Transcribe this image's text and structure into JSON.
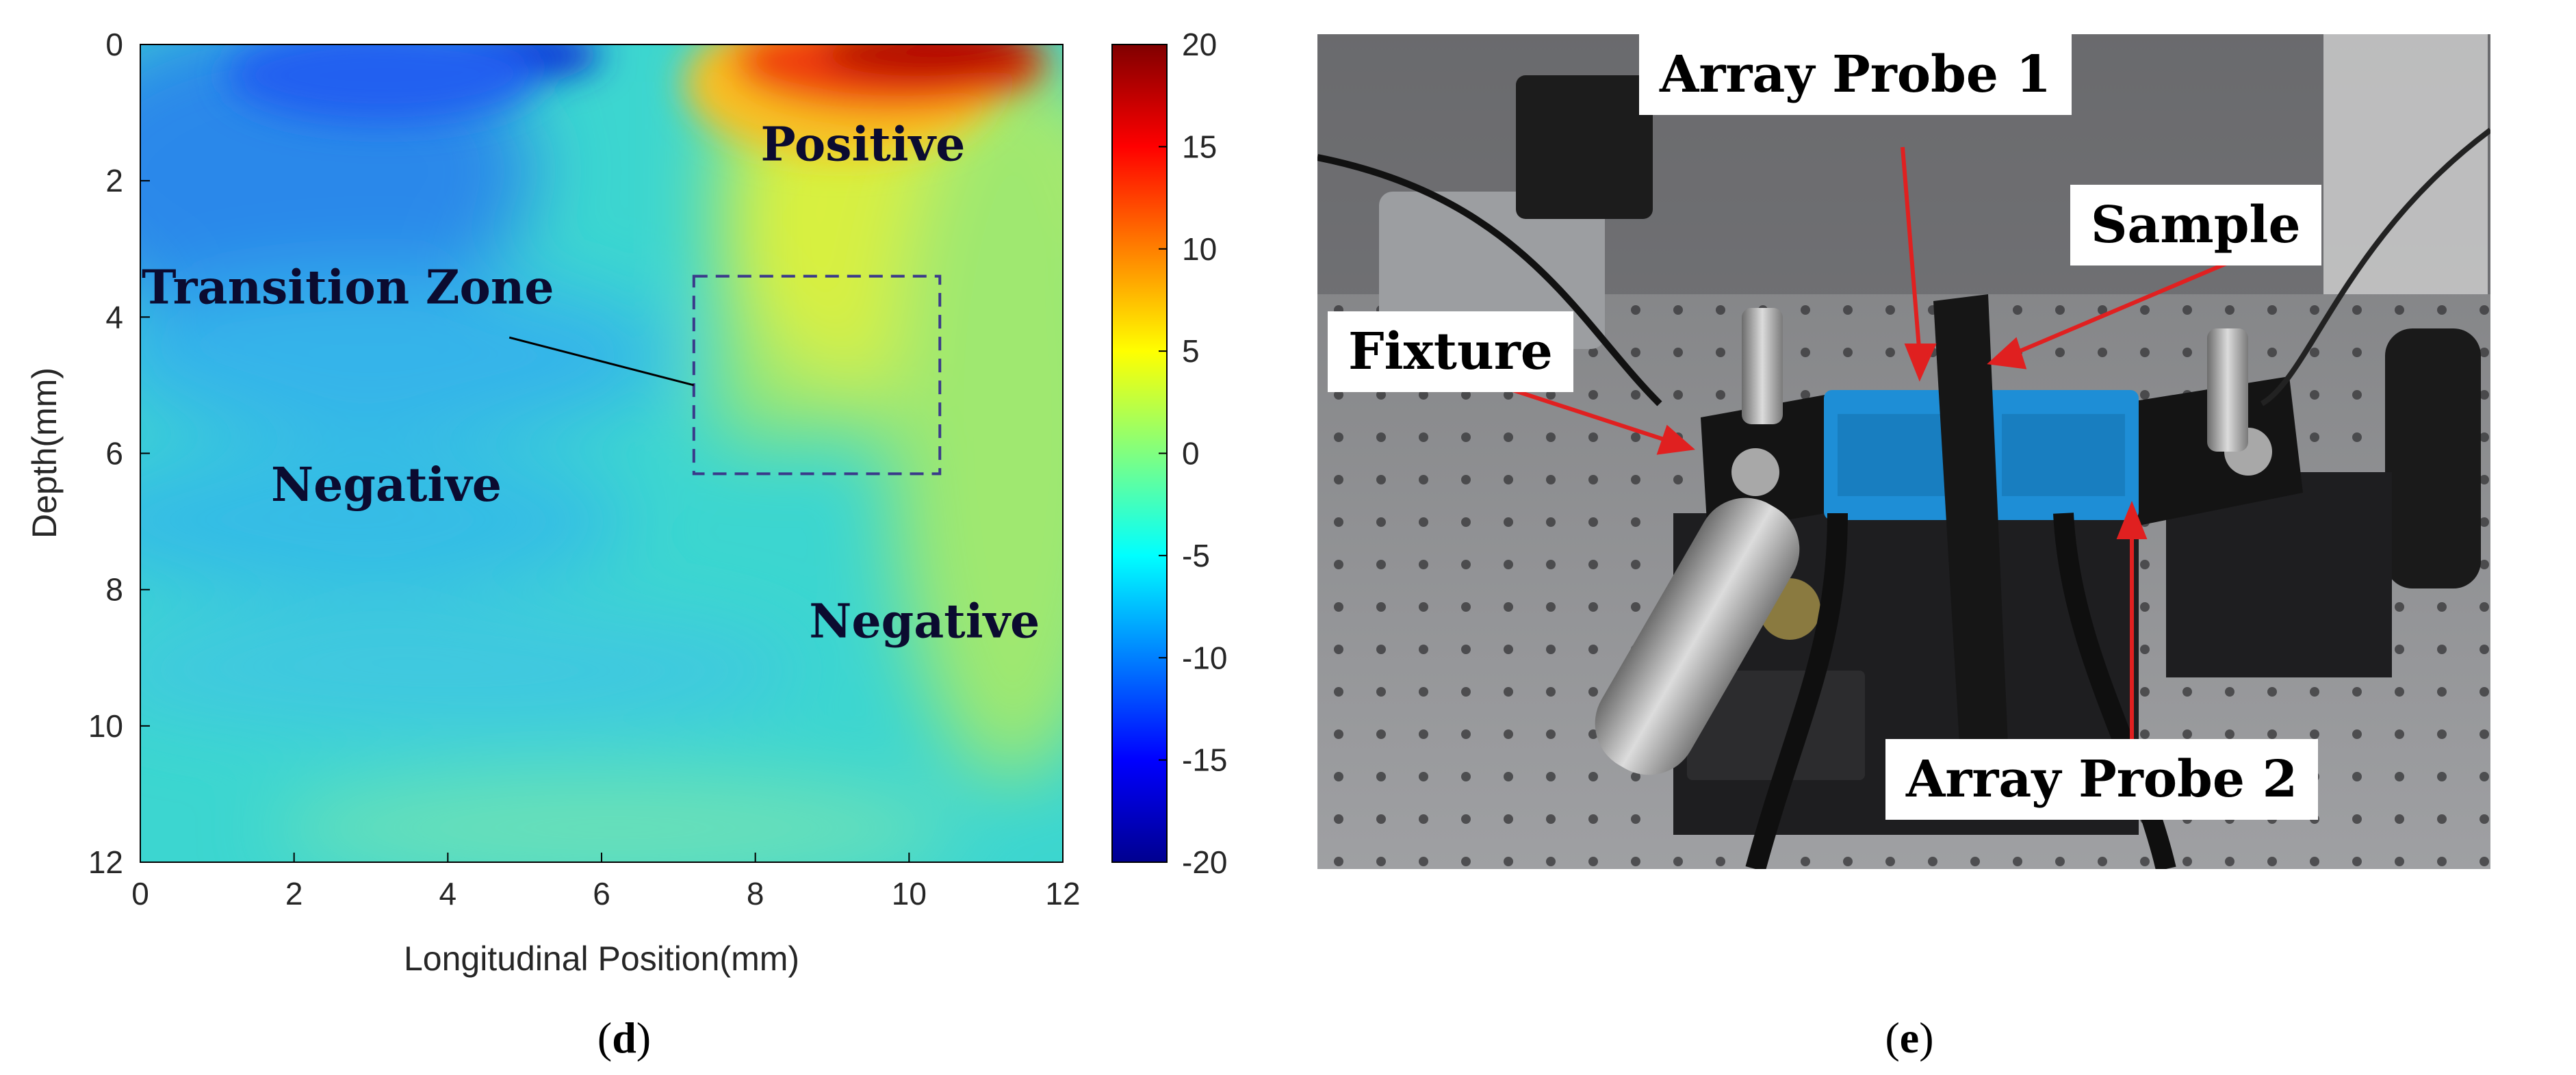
{
  "chart_data": {
    "type": "heatmap",
    "xlabel": "Longitudinal Position(mm)",
    "ylabel": "Depth(mm)",
    "xlim": [
      0,
      12
    ],
    "ylim": [
      12,
      0
    ],
    "x_ticks": [
      0,
      2,
      4,
      6,
      8,
      10,
      12
    ],
    "y_ticks": [
      0,
      2,
      4,
      6,
      8,
      10,
      12
    ],
    "colorbar": {
      "colormap": "jet",
      "range": [
        -20,
        20
      ],
      "ticks": [
        20,
        15,
        10,
        5,
        0,
        -5,
        -10,
        -15,
        -20
      ]
    },
    "region_labels": [
      {
        "text": "Positive",
        "x": 9.4,
        "y": 1.7
      },
      {
        "text": "Transition  Zone",
        "x": 2.7,
        "y": 3.8
      },
      {
        "text": "Negative",
        "x": 3.2,
        "y": 6.7
      },
      {
        "text": "Negative",
        "x": 10.2,
        "y": 8.7
      }
    ],
    "transition_box": {
      "x0": 7.2,
      "x1": 10.4,
      "y0": 3.4,
      "y1": 6.3
    },
    "leader_line": {
      "from": [
        4.8,
        4.3
      ],
      "to": [
        7.2,
        5.0
      ]
    },
    "field_samples": {
      "description": "approximate values read from color",
      "x": [
        0,
        2,
        4,
        6,
        8,
        10,
        12
      ],
      "y": [
        0,
        2,
        4,
        6,
        8,
        10,
        12
      ],
      "z": [
        [
          -9,
          -12,
          -16,
          -4,
          14,
          18,
          16
        ],
        [
          -7,
          -10,
          -9,
          -3,
          5,
          7,
          8
        ],
        [
          -6,
          -7,
          -7,
          -5,
          -2,
          0,
          2
        ],
        [
          -6,
          -6,
          -7,
          -6,
          -4,
          -3,
          -2
        ],
        [
          -6,
          -6,
          -6,
          -6,
          -4,
          -3,
          -3
        ],
        [
          -6,
          -6,
          -7,
          -5,
          -4,
          -4,
          -3
        ],
        [
          -6,
          -5,
          -5,
          -5,
          -4,
          -3,
          -3
        ]
      ]
    }
  },
  "photo": {
    "labels": {
      "probe1": "Array Probe 1",
      "sample": "Sample",
      "fixture": "Fixture",
      "probe2": "Array Probe 2"
    },
    "colors": {
      "arrow": "#e02020",
      "probe_blue": "#1e90d6",
      "bench": "#8a8b8d"
    }
  },
  "captions": {
    "d_open": "(",
    "d_letter": "d",
    "d_close": ")",
    "e_open": "(",
    "e_letter": "e",
    "e_close": ")"
  }
}
